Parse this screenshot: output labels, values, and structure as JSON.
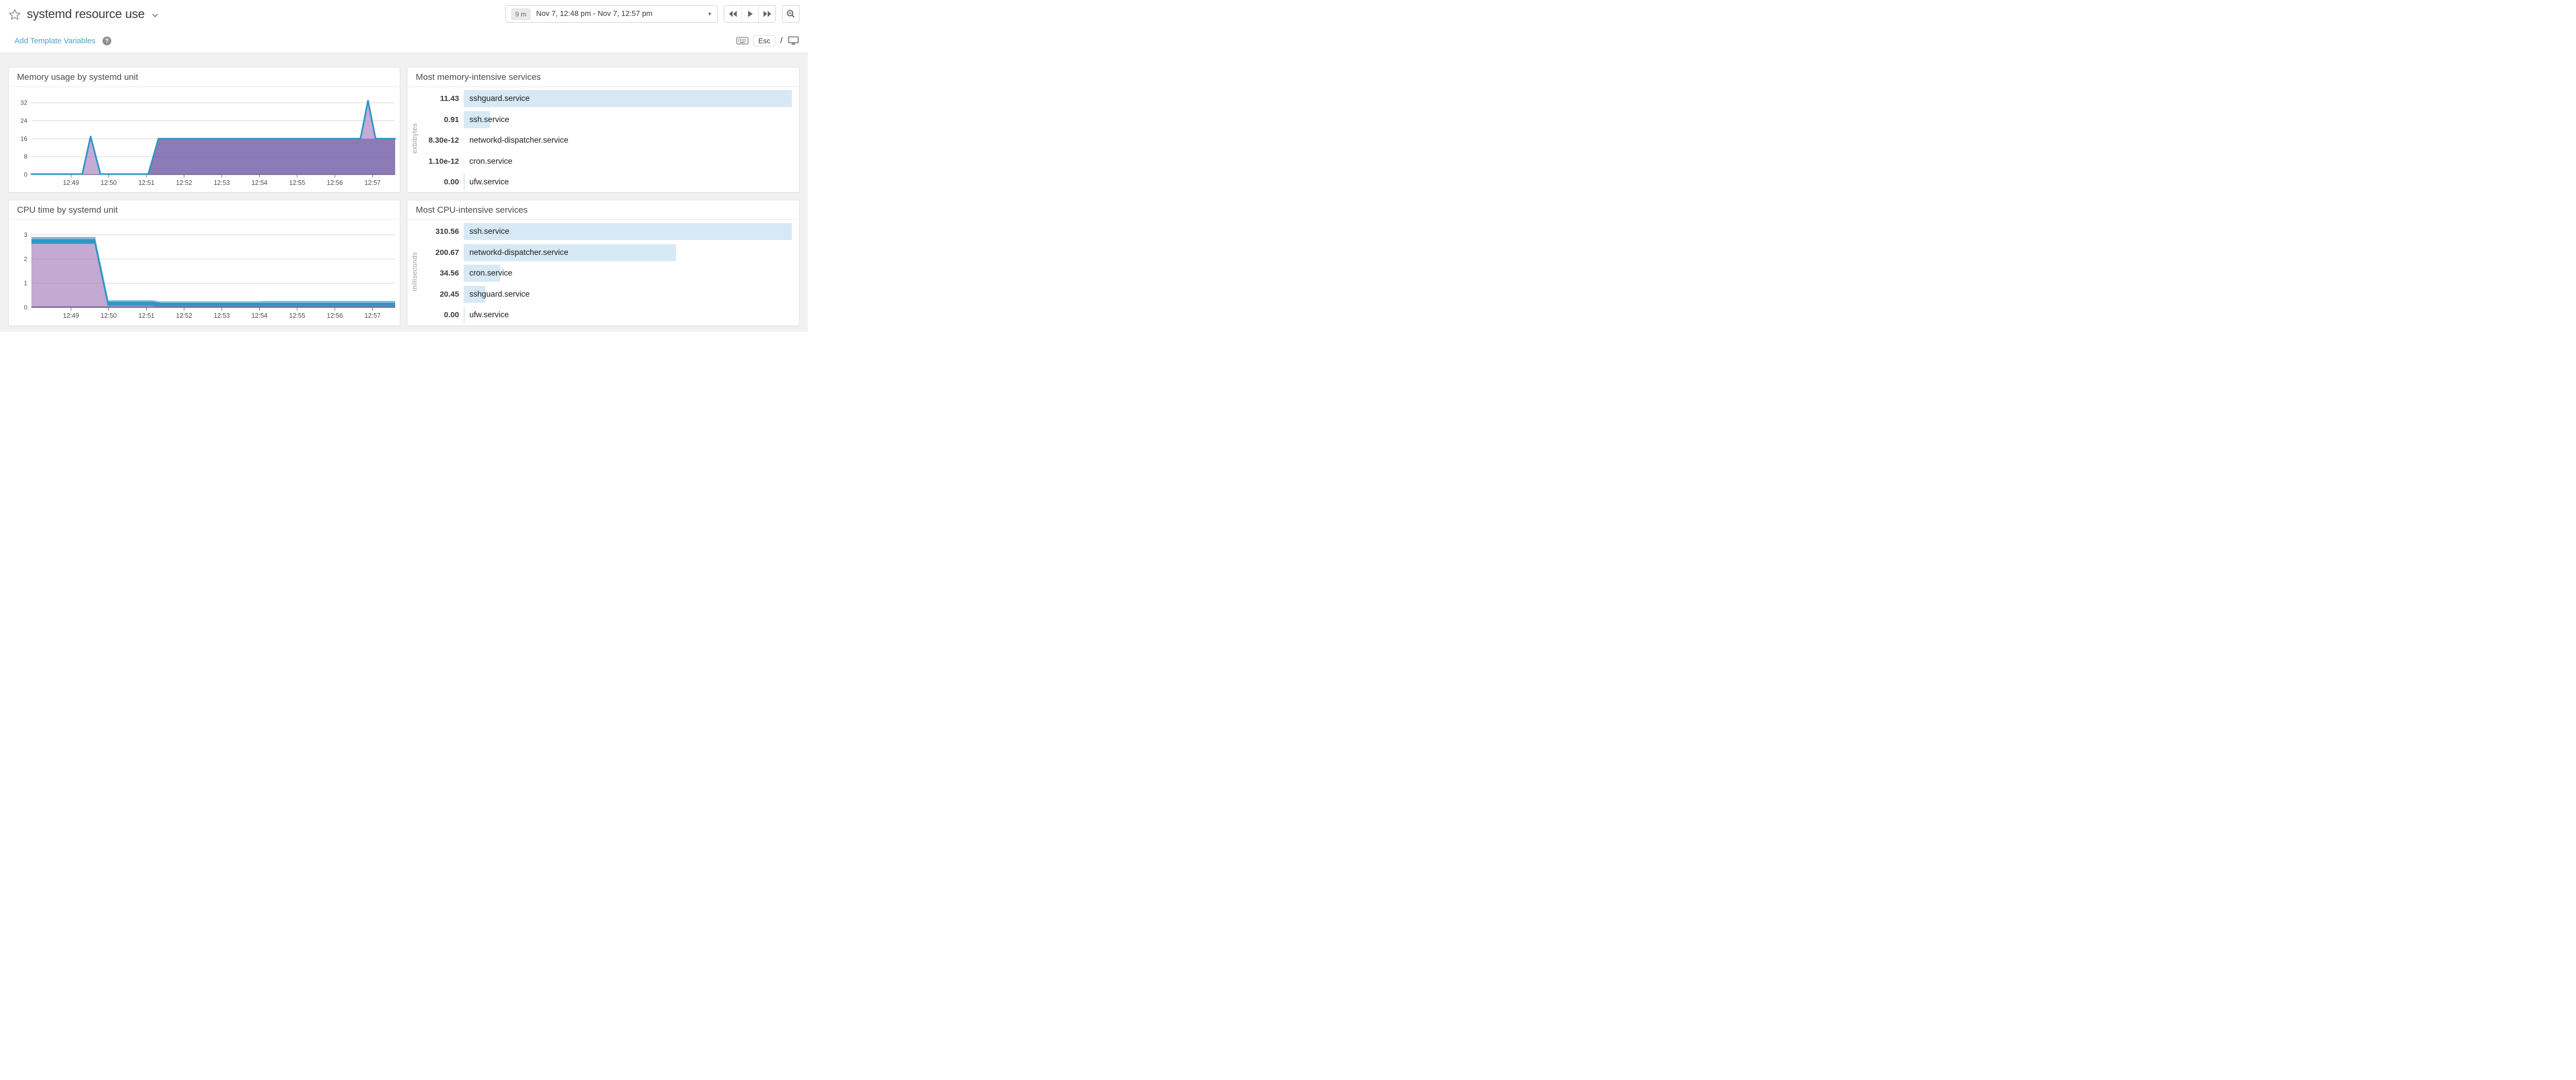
{
  "header": {
    "title": "systemd resource use",
    "time_picker": {
      "duration": "9 m",
      "range": "Nov 7, 12:48 pm - Nov 7, 12:57 pm"
    },
    "template_vars_link": "Add Template Variables",
    "esc_key": "Esc",
    "slash": "/"
  },
  "panels": {
    "memory_chart_title": "Memory usage by systemd unit",
    "memory_top_title": "Most memory-intensive services",
    "cpu_chart_title": "CPU time by systemd unit",
    "cpu_top_title": "Most CPU-intensive services"
  },
  "colors": {
    "accent_blue": "#4aa2cc",
    "chart_line_blue": "#2f97c6",
    "chart_lavender": "#c6abd6",
    "chart_purple": "#8d7bb8",
    "toplist_bar_blue": "#d7e9f5",
    "grid_line": "#e1e1e1",
    "axis_text": "#4d4d4d"
  },
  "chart_data": [
    {
      "id": "memory-usage",
      "type": "area",
      "title": "Memory usage by systemd unit",
      "ylabel": "",
      "ylim": [
        0,
        34
      ],
      "yticks": [
        0,
        8,
        16,
        24,
        32
      ],
      "xdomain": [
        47.95,
        57.6
      ],
      "xticks": [
        {
          "v": 49,
          "label": "12:49"
        },
        {
          "v": 50,
          "label": "12:50"
        },
        {
          "v": 51,
          "label": "12:51"
        },
        {
          "v": 52,
          "label": "12:52"
        },
        {
          "v": 53,
          "label": "12:53"
        },
        {
          "v": 54,
          "label": "12:54"
        },
        {
          "v": 55,
          "label": "12:55"
        },
        {
          "v": 56,
          "label": "12:56"
        },
        {
          "v": 57,
          "label": "12:57"
        }
      ],
      "series": [
        {
          "name": "base-area",
          "color": "#8d7bb8",
          "points": [
            [
              47.95,
              0
            ],
            [
              51.05,
              0
            ],
            [
              51.32,
              16
            ],
            [
              57.6,
              16
            ]
          ],
          "baseline": 0
        },
        {
          "name": "spike-1",
          "color": "#c6abd6",
          "points": [
            [
              49.3,
              0
            ],
            [
              49.52,
              17
            ],
            [
              49.78,
              0
            ]
          ],
          "baseline": 0
        },
        {
          "name": "spike-2",
          "color": "#c6abd6",
          "points": [
            [
              56.68,
              16
            ],
            [
              56.88,
              33
            ],
            [
              57.08,
              16
            ]
          ],
          "baseline": 16
        }
      ],
      "line": {
        "color": "#2f97c6",
        "width": 3.2,
        "points": [
          [
            47.95,
            0.22
          ],
          [
            49.3,
            0.22
          ],
          [
            49.52,
            17
          ],
          [
            49.78,
            0.22
          ],
          [
            51.05,
            0.22
          ],
          [
            51.32,
            16
          ],
          [
            56.68,
            16
          ],
          [
            56.88,
            33
          ],
          [
            57.08,
            16
          ],
          [
            57.6,
            16
          ]
        ]
      }
    },
    {
      "id": "memory-top",
      "type": "bar",
      "title": "Most memory-intensive services",
      "unit": "exbibytes",
      "rows": [
        {
          "label": "11.43",
          "value": 11.43,
          "name": "sshguard.service"
        },
        {
          "label": "0.91",
          "value": 0.91,
          "name": "ssh.service"
        },
        {
          "label": "8.30e-12",
          "value": 8.3e-12,
          "name": "networkd-dispatcher.service"
        },
        {
          "label": "1.10e-12",
          "value": 1.1e-12,
          "name": "cron.service"
        },
        {
          "label": "0.00",
          "value": 0,
          "name": "ufw.service"
        }
      ]
    },
    {
      "id": "cpu-time",
      "type": "area",
      "title": "CPU time by systemd unit",
      "ylabel": "",
      "ylim": [
        0,
        3.15
      ],
      "yticks": [
        0,
        1,
        2,
        3
      ],
      "xdomain": [
        47.95,
        57.6
      ],
      "xticks": [
        {
          "v": 49,
          "label": "12:49"
        },
        {
          "v": 50,
          "label": "12:50"
        },
        {
          "v": 51,
          "label": "12:51"
        },
        {
          "v": 52,
          "label": "12:52"
        },
        {
          "v": 53,
          "label": "12:53"
        },
        {
          "v": 54,
          "label": "12:54"
        },
        {
          "v": 55,
          "label": "12:55"
        },
        {
          "v": 56,
          "label": "12:56"
        },
        {
          "v": 57,
          "label": "12:57"
        }
      ],
      "series": [
        {
          "name": "blue-band",
          "color": "#2f97c6",
          "points": [
            [
              47.95,
              2.9
            ],
            [
              49.65,
              2.9
            ],
            [
              50.0,
              0.3
            ],
            [
              51.15,
              0.3
            ],
            [
              51.38,
              0.25
            ],
            [
              54.0,
              0.25
            ],
            [
              54.06,
              0.26
            ],
            [
              57.6,
              0.26
            ]
          ],
          "baseline": 0
        },
        {
          "name": "lavender-area",
          "color": "#c4a9d3",
          "points": [
            [
              47.95,
              2.63
            ],
            [
              49.62,
              2.63
            ],
            [
              49.97,
              0.07
            ],
            [
              51.15,
              0.07
            ],
            [
              51.38,
              0.02
            ],
            [
              57.6,
              0.02
            ]
          ],
          "baseline": 0
        },
        {
          "name": "purple-sliver",
          "color": "#8a78b2",
          "points": [
            [
              47.95,
              0.05
            ],
            [
              57.6,
              0.05
            ]
          ],
          "baseline": 0
        }
      ],
      "white_line": {
        "points": [
          [
            47.95,
            2.845
          ],
          [
            49.65,
            2.845
          ],
          [
            50.0,
            0.27
          ],
          [
            51.15,
            0.27
          ],
          [
            51.38,
            0.22
          ],
          [
            57.6,
            0.22
          ]
        ]
      }
    },
    {
      "id": "cpu-top",
      "type": "bar",
      "title": "Most CPU-intensive services",
      "unit": "milliseconds",
      "rows": [
        {
          "label": "310.56",
          "value": 310.56,
          "name": "ssh.service"
        },
        {
          "label": "200.67",
          "value": 200.67,
          "name": "networkd-dispatcher.service"
        },
        {
          "label": "34.56",
          "value": 34.56,
          "name": "cron.service"
        },
        {
          "label": "20.45",
          "value": 20.45,
          "name": "sshguard.service"
        },
        {
          "label": "0.00",
          "value": 0,
          "name": "ufw.service"
        }
      ]
    }
  ]
}
